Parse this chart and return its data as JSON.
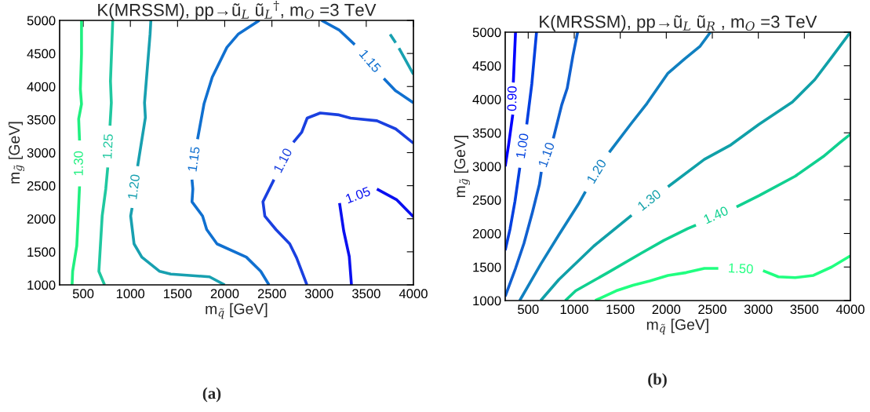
{
  "chart_data": [
    {
      "type": "line",
      "title": "K(MRSSM), pp→ũ$_{L}$ ũ$_{L}$$^{†}$, m$_{O}$ =3 TeV",
      "xlabel": "m$_{q̃}$ [GeV]",
      "ylabel": "m$_{g̃}$ [GeV]",
      "xlim": [
        250,
        4000
      ],
      "ylim": [
        1000,
        5000
      ],
      "xticks": [
        500,
        1000,
        1500,
        2000,
        2500,
        3000,
        3500,
        4000
      ],
      "yticks": [
        1000,
        1500,
        2000,
        2500,
        3000,
        3500,
        4000,
        4500,
        5000
      ],
      "grid": false,
      "legend": false,
      "annotations": [
        "(a)"
      ],
      "series": [
        {
          "name": "1.30",
          "color": "#20f080",
          "x": [
            382,
            388,
            432,
            447,
            461,
            null,
            461,
            452,
            482,
            470,
            482,
            482
          ],
          "values": [
            1000,
            1204,
            1592,
            2041,
            2490,
            null,
            3184,
            3510,
            3735,
            3959,
            4490,
            5000
          ]
        },
        {
          "name": "1.25",
          "color": "#20c8a0",
          "x": [
            726,
            666,
            701,
            739,
            760,
            null,
            784,
            798,
            789,
            813
          ],
          "values": [
            1000,
            1204,
            2041,
            2449,
            2776,
            null,
            3408,
            3755,
            4082,
            5000
          ]
        },
        {
          "name": "1.20",
          "color": "#18a0b0",
          "x": [
            2000,
            1839,
            1428,
            1311,
            1121,
            1039,
            1003,
            1018,
            null,
            1077,
            1159,
            1150,
            1209,
            1217
          ],
          "values": [
            1000,
            1122,
            1163,
            1204,
            1420,
            1620,
            2041,
            2163,
            null,
            2796,
            3531,
            3755,
            4796,
            5000
          ]
        },
        {
          "name": "1.15",
          "color": "#1070d0",
          "x": [
            2469,
            2382,
            2229,
            1918,
            1809,
            1765,
            1653,
            1662,
            1653,
            null,
            1712,
            1780,
            1868,
            2023,
            2146,
            2367
          ],
          "values": [
            1000,
            1204,
            1420,
            1620,
            1837,
            2041,
            2257,
            2449,
            2592,
            null,
            3204,
            3735,
            4143,
            4592,
            4796,
            5000
          ]
        },
        {
          "name": "1.15",
          "color": "#1070d0",
          "x": [
            3026,
            3211,
            3378,
            null,
            3686,
            3809,
            4000
          ],
          "values": [
            5000,
            4857,
            4633,
            null,
            4122,
            3939,
            3755
          ]
        },
        {
          "name": "1.10",
          "color": "#1a40e0",
          "x": [
            2871,
            2762,
            2689,
            2543,
            2425,
            2405,
            2522,
            null,
            2727,
            2815,
            2874,
            3012,
            3211,
            3334,
            3613,
            3812,
            4000
          ],
          "values": [
            1000,
            1408,
            1620,
            1837,
            2041,
            2257,
            2592,
            null,
            3155,
            3306,
            3522,
            3600,
            3571,
            3522,
            3482,
            3359,
            3143
          ]
        },
        {
          "name": "1.05",
          "color": "#0a10f0",
          "x": [
            3343,
            3320,
            3261,
            3217,
            null,
            3613,
            3824,
            4000
          ],
          "values": [
            1000,
            1429,
            1816,
            2237,
            null,
            2449,
            2286,
            2029
          ]
        },
        {
          "color": "#18a0b0",
          "x": [
            3753,
            3812,
            null,
            3847,
            4000
          ],
          "values": [
            4788,
            4661,
            null,
            4580,
            4184
          ]
        }
      ]
    },
    {
      "type": "line",
      "title": "K(MRSSM), pp→ũ$_{L}$ ũ$_{R}$ , m$_{O}$ =3 TeV",
      "xlabel": "m$_{q̃}$ [GeV]",
      "ylabel": "m$_{g̃}$ [GeV]",
      "xlim": [
        250,
        4000
      ],
      "ylim": [
        1000,
        5000
      ],
      "xticks": [
        500,
        1000,
        1500,
        2000,
        2500,
        3000,
        3500,
        4000
      ],
      "yticks": [
        1000,
        1500,
        2000,
        2500,
        3000,
        3500,
        4000,
        4500,
        5000
      ],
      "grid": false,
      "legend": false,
      "annotations": [
        "(b)"
      ],
      "series": [
        {
          "name": "0.90",
          "color": "#0000ff",
          "x": [
            250,
            286,
            332,
            null,
            338,
            362
          ],
          "values": [
            3000,
            3313,
            3771,
            null,
            4250,
            5000
          ]
        },
        {
          "name": "1.00",
          "color": "#0040e0",
          "x": [
            250,
            302,
            356,
            408,
            null,
            484,
            539,
            590
          ],
          "values": [
            1750,
            2063,
            2479,
            2979,
            null,
            3625,
            4229,
            5000
          ]
        },
        {
          "name": "1.10",
          "color": "#1060d0",
          "x": [
            250,
            362,
            454,
            545,
            621,
            642,
            null,
            773,
            864,
            924,
            985,
            1037
          ],
          "values": [
            1063,
            1479,
            1854,
            2313,
            2729,
            2917,
            null,
            3417,
            3917,
            4167,
            4646,
            5000
          ]
        },
        {
          "name": "1.20",
          "color": "#1080c0",
          "x": [
            408,
            636,
            833,
            1046,
            1122,
            null,
            1380,
            1623,
            1790,
            2018,
            2201,
            2368,
            2480
          ],
          "values": [
            1000,
            1542,
            1979,
            2438,
            2625,
            null,
            3208,
            3646,
            3938,
            4388,
            4604,
            4792,
            5000
          ]
        },
        {
          "name": "1.30",
          "color": "#10a0a8",
          "x": [
            636,
            833,
            1213,
            1623,
            null,
            2018,
            2413,
            2702,
            3006,
            3370,
            3613,
            3796,
            4000
          ],
          "values": [
            1000,
            1313,
            1813,
            2271,
            null,
            2696,
            3104,
            3321,
            3625,
            3958,
            4292,
            4625,
            5000
          ]
        },
        {
          "name": "1.40",
          "color": "#10d090",
          "x": [
            903,
            1016,
            1365,
            1730,
            1973,
            2231,
            2322,
            null,
            2763,
            3006,
            3401,
            3705,
            3887,
            4000
          ],
          "values": [
            1000,
            1146,
            1417,
            1708,
            1896,
            2071,
            2125,
            null,
            2396,
            2563,
            2854,
            3146,
            3354,
            3479
          ]
        },
        {
          "name": "1.50",
          "color": "#20ff80",
          "x": [
            1228,
            1456,
            1638,
            1821,
            2018,
            2216,
            2413,
            2565,
            null,
            3051,
            3218,
            3401,
            3598,
            3796,
            4000
          ],
          "values": [
            1000,
            1146,
            1229,
            1292,
            1375,
            1417,
            1479,
            1479,
            null,
            1446,
            1354,
            1342,
            1375,
            1500,
            1667
          ]
        }
      ]
    }
  ]
}
